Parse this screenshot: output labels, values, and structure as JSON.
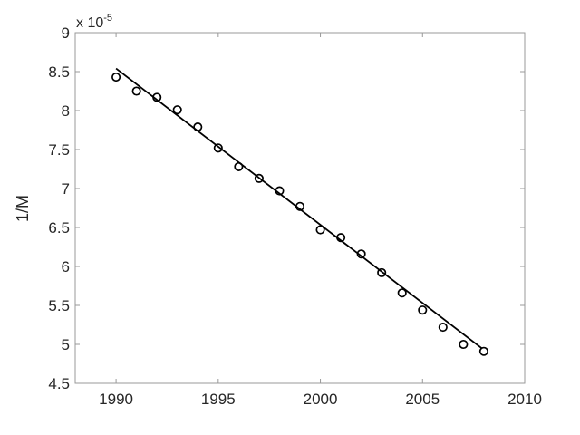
{
  "figure": {
    "background": "#ffffff",
    "axis_color": "#999999",
    "text_color": "#262626",
    "data_color": "#000000",
    "marker_fill": "#ffffff"
  },
  "chart_data": {
    "type": "scatter",
    "title": "",
    "xlabel": "",
    "ylabel": "1/M",
    "y_exponent_label": {
      "base": "x 10",
      "sup": "-5"
    },
    "y_unit_scale": "1e-5",
    "xlim": [
      1988,
      2010
    ],
    "ylim": [
      4.5,
      9
    ],
    "x_ticks": [
      1990,
      1995,
      2000,
      2005,
      2010
    ],
    "y_ticks": [
      4.5,
      5,
      5.5,
      6,
      6.5,
      7,
      7.5,
      8,
      8.5,
      9
    ],
    "grid": false,
    "legend": false,
    "box": true,
    "series": [
      {
        "name": "measured-points",
        "type": "scatter",
        "marker": "open-circle",
        "x": [
          1990,
          1991,
          1992,
          1993,
          1994,
          1995,
          1996,
          1997,
          1998,
          1999,
          2000,
          2001,
          2002,
          2003,
          2004,
          2005,
          2006,
          2007,
          2008
        ],
        "y": [
          8.43,
          8.25,
          8.17,
          8.01,
          7.79,
          7.52,
          7.28,
          7.13,
          6.97,
          6.77,
          6.47,
          6.37,
          6.16,
          5.92,
          5.66,
          5.44,
          5.22,
          5.0,
          4.91
        ]
      },
      {
        "name": "linear-fit-line",
        "type": "line",
        "x": [
          1990,
          2007.9
        ],
        "y": [
          8.54,
          4.95
        ]
      }
    ]
  }
}
